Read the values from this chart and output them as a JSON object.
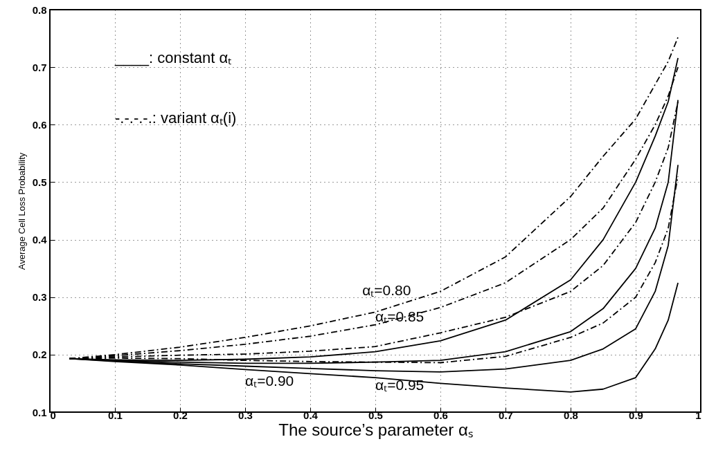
{
  "chart_data": {
    "type": "line",
    "xlabel": "The source’s parameter αₛ",
    "ylabel": "Average Cell Loss Probability",
    "x": [
      0.03,
      0.1,
      0.2,
      0.3,
      0.4,
      0.5,
      0.6,
      0.7,
      0.8,
      0.85,
      0.9,
      0.93,
      0.95,
      0.965
    ],
    "series": [
      {
        "color": "#000000",
        "line_style": "dashed",
        "values": [
          0.193,
          0.2,
          0.213,
          0.23,
          0.25,
          0.274,
          0.31,
          0.37,
          0.475,
          0.545,
          0.61,
          0.67,
          0.71,
          0.752
        ]
      },
      {
        "color": "#000000",
        "line_style": "dashed",
        "values": [
          0.193,
          0.198,
          0.207,
          0.218,
          0.232,
          0.252,
          0.282,
          0.325,
          0.4,
          0.455,
          0.54,
          0.6,
          0.65,
          0.7
        ]
      },
      {
        "color": "#000000",
        "line_style": "solid",
        "values": [
          0.193,
          0.191,
          0.19,
          0.192,
          0.196,
          0.205,
          0.224,
          0.26,
          0.33,
          0.4,
          0.5,
          0.58,
          0.64,
          0.716
        ]
      },
      {
        "color": "#000000",
        "line_style": "dashed",
        "values": [
          0.193,
          0.196,
          0.199,
          0.201,
          0.206,
          0.214,
          0.238,
          0.265,
          0.31,
          0.355,
          0.43,
          0.5,
          0.56,
          0.64
        ]
      },
      {
        "color": "#000000",
        "line_style": "solid",
        "values": [
          0.193,
          0.19,
          0.187,
          0.185,
          0.185,
          0.187,
          0.19,
          0.205,
          0.24,
          0.28,
          0.35,
          0.42,
          0.5,
          0.643
        ]
      },
      {
        "color": "#000000",
        "line_style": "dashed",
        "values": [
          0.193,
          0.194,
          0.193,
          0.19,
          0.188,
          0.187,
          0.186,
          0.197,
          0.23,
          0.255,
          0.3,
          0.36,
          0.42,
          0.51
        ]
      },
      {
        "color": "#000000",
        "line_style": "solid",
        "values": [
          0.193,
          0.189,
          0.184,
          0.18,
          0.176,
          0.172,
          0.17,
          0.175,
          0.19,
          0.21,
          0.245,
          0.31,
          0.39,
          0.53
        ]
      },
      {
        "color": "#000000",
        "line_style": "solid",
        "values": [
          0.193,
          0.188,
          0.182,
          0.174,
          0.167,
          0.16,
          0.15,
          0.142,
          0.135,
          0.14,
          0.16,
          0.21,
          0.26,
          0.325
        ]
      }
    ],
    "annotations": [
      "____: constant αₜ",
      "-.-.-.-.: variant αₜ(i)",
      "αₜ=0.80",
      "αₜ=0.85",
      "αₜ=0.90",
      "αₜ=0.95"
    ],
    "xlim": [
      0,
      1
    ],
    "ylim": [
      0.1,
      0.8
    ],
    "xticks": [
      0,
      0.1,
      0.2,
      0.3,
      0.4,
      0.5,
      0.6,
      0.7,
      0.8,
      0.9,
      1
    ],
    "yticks": [
      0.1,
      0.2,
      0.3,
      0.4,
      0.5,
      0.6,
      0.7,
      0.8
    ],
    "grid": true,
    "marker": "none"
  }
}
